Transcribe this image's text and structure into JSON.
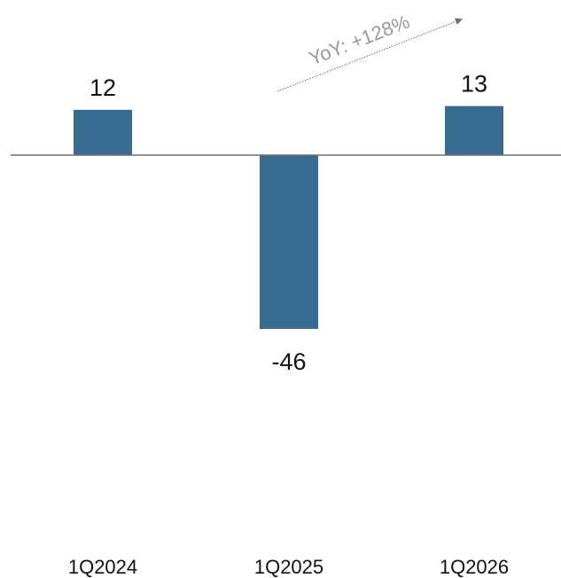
{
  "chart_data": {
    "type": "bar",
    "categories": [
      "1Q2024",
      "1Q2025",
      "1Q2026"
    ],
    "values": [
      12,
      -46,
      13
    ],
    "data_labels": [
      "12",
      "-46",
      "13"
    ],
    "title": "",
    "xlabel": "",
    "ylabel": "",
    "ylim": [
      -46,
      13
    ],
    "grid": false,
    "legend": "none",
    "bar_color": "#376b8f",
    "annotation": {
      "text": "YoY: +128%",
      "from_category": "1Q2025",
      "to_category": "1Q2026"
    }
  }
}
